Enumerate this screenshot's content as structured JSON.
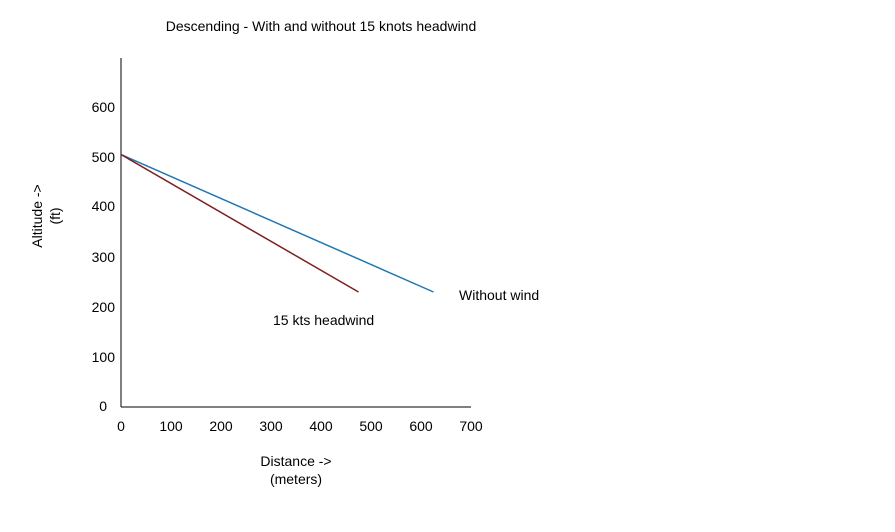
{
  "chart_data": {
    "type": "line",
    "title": "Descending - With and without 15 knots headwind",
    "xlabel": [
      "Distance ->",
      "(meters)"
    ],
    "ylabel": [
      "Altitude ->",
      "(ft)"
    ],
    "xlim": [
      0,
      700
    ],
    "ylim": [
      0,
      700
    ],
    "x_ticks": [
      "0",
      "100",
      "200",
      "300",
      "400",
      "500",
      "600",
      "700"
    ],
    "y_ticks": [
      "0",
      "100",
      "200",
      "300",
      "400",
      "500",
      "600"
    ],
    "grid": false,
    "series": [
      {
        "name": "Without wind",
        "color": "#1f77b4",
        "x": [
          0,
          625
        ],
        "y": [
          505,
          230
        ]
      },
      {
        "name": "15 kts headwind",
        "color": "#7f1f1f",
        "x": [
          0,
          475
        ],
        "y": [
          505,
          230
        ]
      }
    ]
  }
}
